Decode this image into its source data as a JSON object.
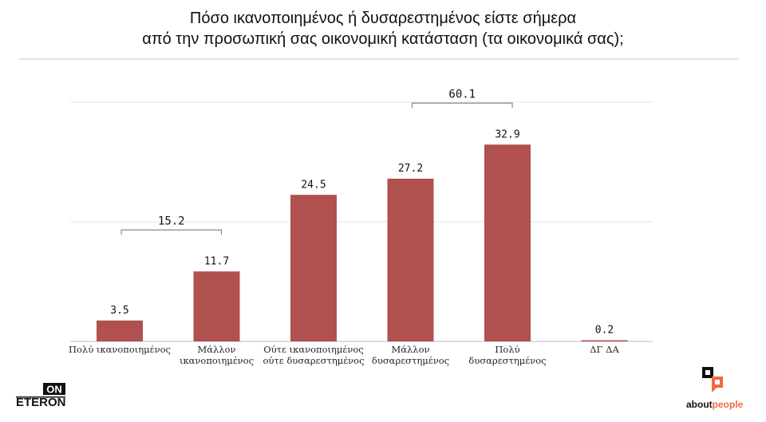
{
  "header": {
    "title_line1": "Πόσο ικανοποιημένος ή δυσαρεστημένος είστε σήμερα",
    "title_line2": "από την προσωπική σας οικονομική κατάσταση (τα οικονομικά σας);"
  },
  "chart_data": {
    "type": "bar",
    "categories": [
      [
        "Πολύ ικανοποιημένος"
      ],
      [
        "Μάλλον",
        "ικανοποιημένος"
      ],
      [
        "Ούτε ικανοποιημένος",
        "ούτε δυσαρεστημένος"
      ],
      [
        "Μάλλον",
        "δυσαρεστημένος"
      ],
      [
        "Πολύ",
        "δυσαρεστημένος"
      ],
      [
        "ΔΓ ΔΑ"
      ]
    ],
    "values": [
      3.5,
      11.7,
      24.5,
      27.2,
      32.9,
      0.2
    ],
    "value_labels": [
      "3.5",
      "11.7",
      "24.5",
      "27.2",
      "32.9",
      "0.2"
    ],
    "ylim": [
      0,
      40
    ],
    "grid": true,
    "bar_color": "#b0504f",
    "annotations": [
      {
        "label": "15.2",
        "from_index": 0,
        "to_index": 1
      },
      {
        "label": "60.1",
        "from_index": 3,
        "to_index": 4
      }
    ]
  },
  "logos": {
    "left_line1": "ON",
    "left_line2": "ETERON",
    "right_part1": "about",
    "right_part2": "people",
    "right_accent": "#f26a3d"
  }
}
